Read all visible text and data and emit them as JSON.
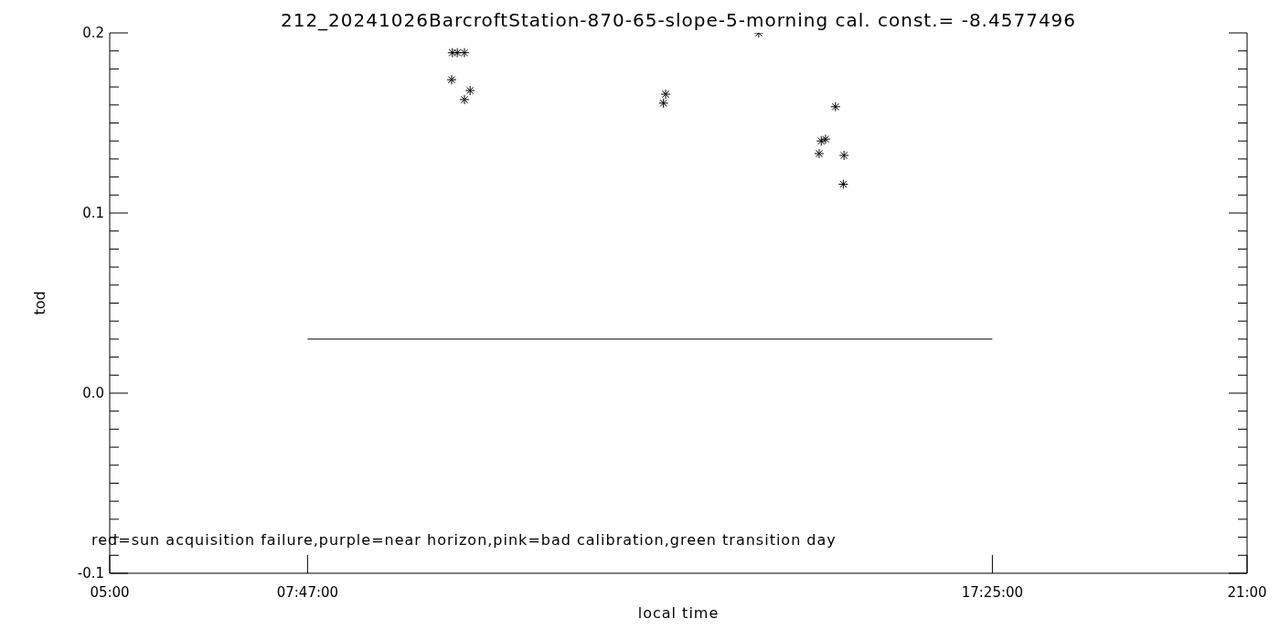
{
  "chart_data": {
    "type": "scatter",
    "title": "212_20241026BarcroftStation-870-65-slope-5-morning cal. const.= -8.4577496",
    "xlabel": "local time",
    "ylabel": "tod",
    "annotations": [
      "red=sun acquisition failure,purple=near horizon,pink=bad calibration,green transition day"
    ],
    "xlim": [
      5,
      21
    ],
    "xticks": [
      {
        "value": 5,
        "label": "05:00"
      },
      {
        "value": 7.78333,
        "label": "07:47:00"
      },
      {
        "value": 17.41667,
        "label": "17:25:00"
      },
      {
        "value": 21,
        "label": "21:00"
      }
    ],
    "ylim": [
      -0.1,
      0.2
    ],
    "yticks": [
      -0.1,
      {
        "value": -0.09,
        "label": null
      },
      {
        "value": -0.08,
        "label": null
      },
      {
        "value": -0.07,
        "label": null
      },
      {
        "value": -0.06,
        "label": null
      },
      {
        "value": -0.05,
        "label": null
      },
      {
        "value": -0.04,
        "label": null
      },
      {
        "value": -0.03,
        "label": null
      },
      {
        "value": -0.02,
        "label": null
      },
      {
        "value": -0.01,
        "label": null
      },
      {
        "value": 0,
        "label": "0.0"
      },
      {
        "value": 0.01,
        "label": null
      },
      {
        "value": 0.02,
        "label": null
      },
      {
        "value": 0.03,
        "label": null
      },
      {
        "value": 0.04,
        "label": null
      },
      {
        "value": 0.05,
        "label": null
      },
      {
        "value": 0.06,
        "label": null
      },
      {
        "value": 0.07,
        "label": null
      },
      {
        "value": 0.08,
        "label": null
      },
      {
        "value": 0.09,
        "label": null
      },
      0.1,
      {
        "value": 0.11,
        "label": null
      },
      {
        "value": 0.12,
        "label": null
      },
      {
        "value": 0.13,
        "label": null
      },
      {
        "value": 0.14,
        "label": null
      },
      {
        "value": 0.15,
        "label": null
      },
      {
        "value": 0.16,
        "label": null
      },
      {
        "value": 0.17,
        "label": null
      },
      {
        "value": 0.18,
        "label": null
      },
      {
        "value": 0.19,
        "label": null
      },
      0.2
    ],
    "series": [
      {
        "marker": "cross",
        "color": "#000000",
        "x": [
          9.82,
          9.89,
          9.99,
          9.81,
          9.99,
          10.07,
          12.79,
          12.82,
          14.13,
          15.21,
          15.01,
          15.07,
          14.98,
          15.33,
          15.32
        ],
        "values": [
          0.189,
          0.189,
          0.189,
          0.174,
          0.163,
          0.168,
          0.161,
          0.166,
          0.2,
          0.159,
          0.14,
          0.141,
          0.133,
          0.132,
          0.116
        ]
      },
      {
        "type": "line",
        "marker": "none",
        "color": "#000000",
        "x": [
          7.78333,
          17.41667
        ],
        "values": [
          0.03,
          0.03
        ]
      }
    ]
  }
}
